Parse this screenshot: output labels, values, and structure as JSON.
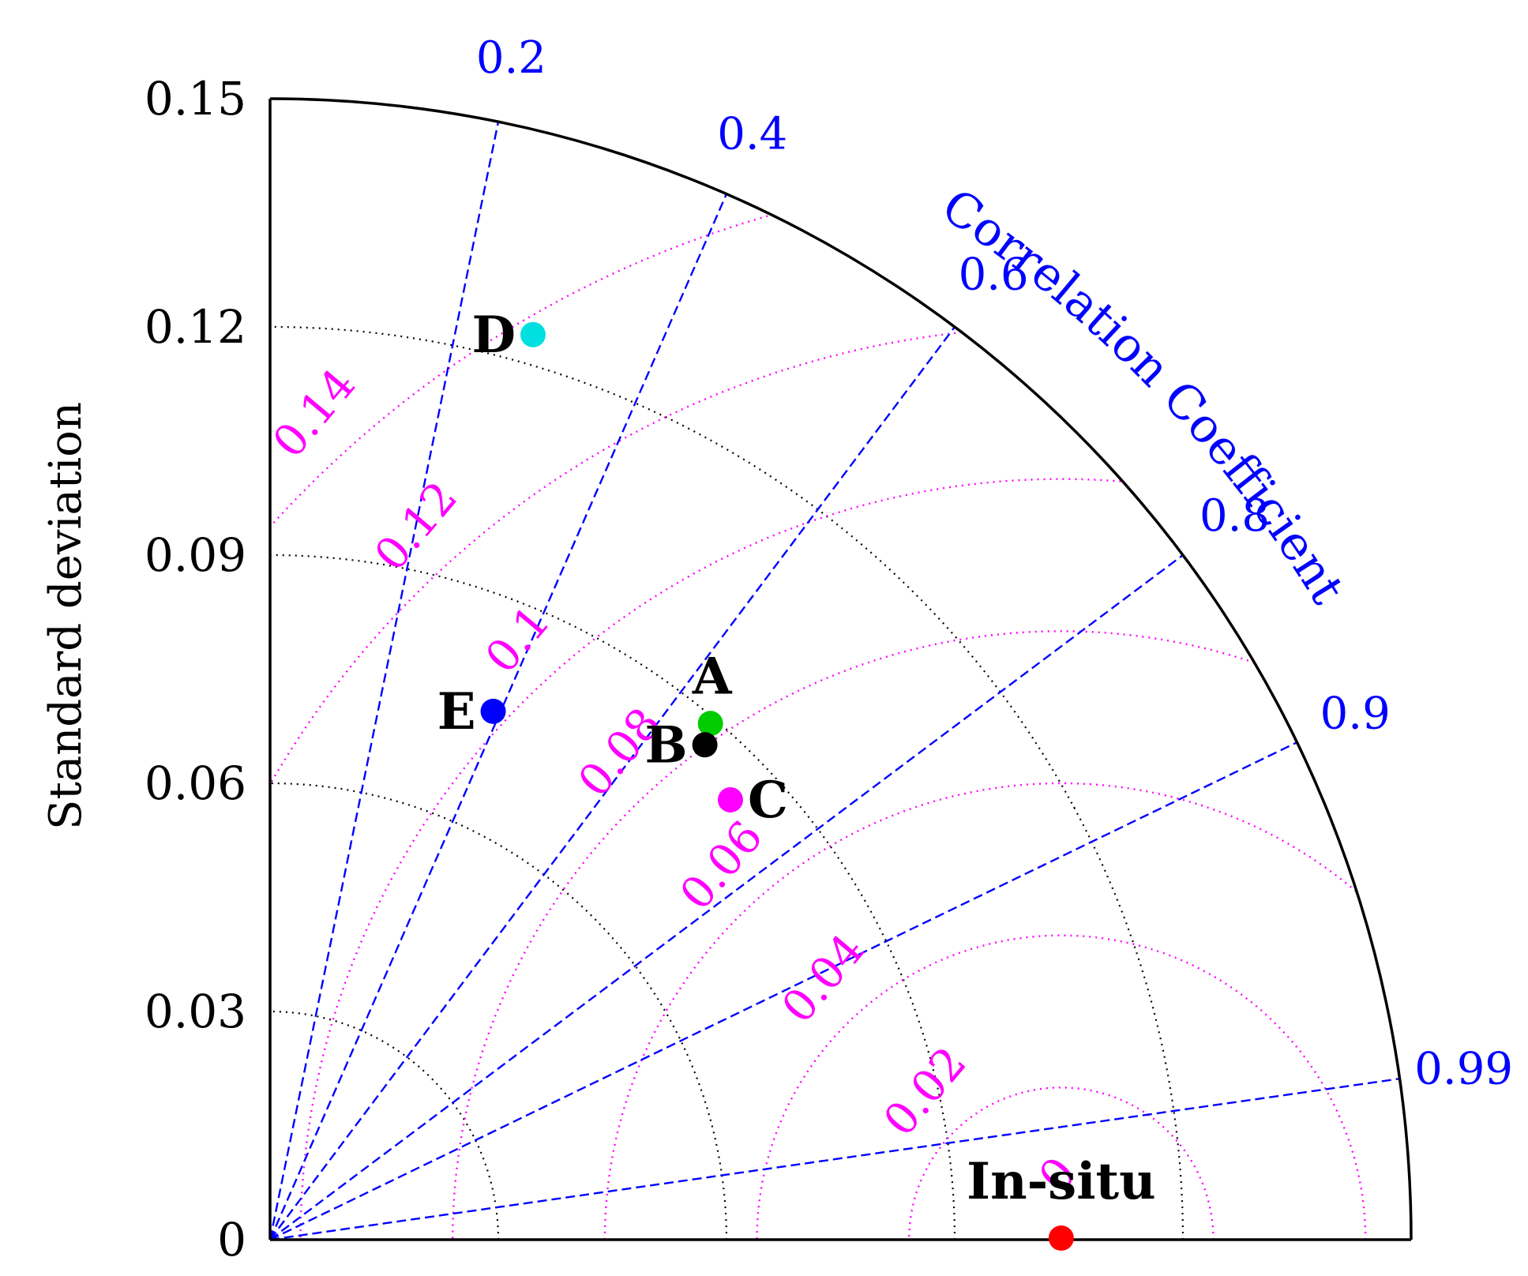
{
  "chart_data": {
    "type": "scatter",
    "subtype": "taylor-diagram",
    "ylabel": "Standard deviation",
    "correlation_label": "Correlation Coefficient",
    "std_ticks": [
      "0",
      "0.03",
      "0.06",
      "0.09",
      "0.12",
      "0.15"
    ],
    "std_range": [
      0,
      0.15
    ],
    "std_arcs": [
      0.03,
      0.06,
      0.09,
      0.12
    ],
    "correlation_ticks": [
      "0.2",
      "0.4",
      "0.6",
      "0.8",
      "0.9",
      "0.99"
    ],
    "rms_ticks": [
      "0",
      "0.02",
      "0.04",
      "0.06",
      "0.08",
      "0.1",
      "0.12",
      "0.14"
    ],
    "reference": {
      "name": "In-situ",
      "std": 0.104,
      "correlation": 1.0,
      "color": "#ff0000"
    },
    "points": [
      {
        "name": "A",
        "std": 0.0892,
        "correlation": 0.649,
        "color": "#00cc00"
      },
      {
        "name": "B",
        "std": 0.0866,
        "correlation": 0.66,
        "color": "#000000"
      },
      {
        "name": "C",
        "std": 0.0837,
        "correlation": 0.723,
        "color": "#ff00ff"
      },
      {
        "name": "D",
        "std": 0.1239,
        "correlation": 0.279,
        "color": "#00e0e0"
      },
      {
        "name": "E",
        "std": 0.0754,
        "correlation": 0.389,
        "color": "#0000ff"
      }
    ],
    "colors": {
      "correlation_lines": "#0000ff",
      "rms_arcs": "#ff00ff",
      "std_arcs": "#000000",
      "frame": "#000000"
    }
  }
}
